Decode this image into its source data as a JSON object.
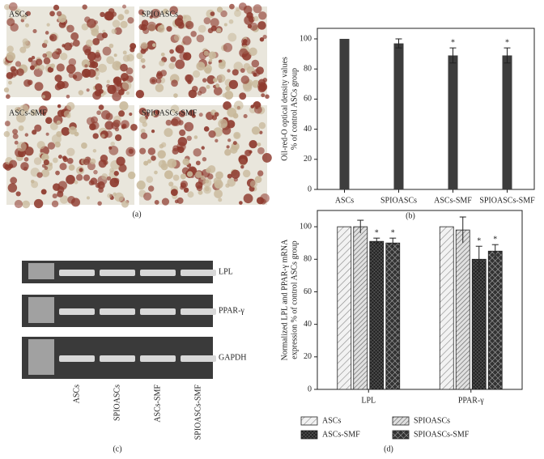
{
  "micrographs": {
    "panel_label": "(a)",
    "labels": [
      "ASCs",
      "SPIOASCs",
      "ASCs-SMF",
      "SPIOASCs-SMF"
    ]
  },
  "gel": {
    "panel_label": "(c)",
    "rows": [
      "LPL",
      "PPAR-γ",
      "GAPDH"
    ],
    "lanes": [
      "ASCs",
      "SPIOASCs",
      "ASCs-SMF",
      "SPIOASCs-SMF"
    ]
  },
  "chart_data": [
    {
      "type": "bar",
      "panel_label": "(b)",
      "ylabel": [
        "Oil-red-O optical density values",
        "% of control ASCs group"
      ],
      "categories": [
        "ASCs",
        "SPIOASCs",
        "ASCs-SMF",
        "SPIOASCs-SMF"
      ],
      "values": [
        100,
        97,
        89,
        89
      ],
      "errors": [
        0,
        3,
        5,
        5
      ],
      "value_labels": [
        null,
        null,
        "*",
        "*"
      ],
      "color": "#3d3d3d",
      "ylim": [
        0,
        107
      ],
      "yticks": [
        0,
        20,
        40,
        60,
        80,
        100
      ]
    },
    {
      "type": "grouped_bar",
      "panel_label": "(d)",
      "ylabel": [
        "Normalized LPL and PPAR-γ mRNA",
        "expression % of control ASCs group"
      ],
      "categories": [
        "LPL",
        "PPAR-γ"
      ],
      "series": [
        {
          "name": "ASCs",
          "hatch": "light",
          "values": [
            100,
            100
          ],
          "errors": [
            0,
            0
          ]
        },
        {
          "name": "SPIOASCs",
          "hatch": "diag",
          "values": [
            100,
            98
          ],
          "errors": [
            4,
            8
          ]
        },
        {
          "name": "ASCs-SMF",
          "hatch": "dense",
          "values": [
            91,
            80
          ],
          "errors": [
            2,
            8
          ],
          "value_labels": [
            "*",
            "*"
          ]
        },
        {
          "name": "SPIOASCs-SMF",
          "hatch": "cross",
          "values": [
            90,
            85
          ],
          "errors": [
            3,
            4
          ],
          "value_labels": [
            "*",
            "*"
          ]
        }
      ],
      "ylim": [
        0,
        110
      ],
      "yticks": [
        0,
        20,
        40,
        60,
        80,
        100
      ]
    }
  ]
}
